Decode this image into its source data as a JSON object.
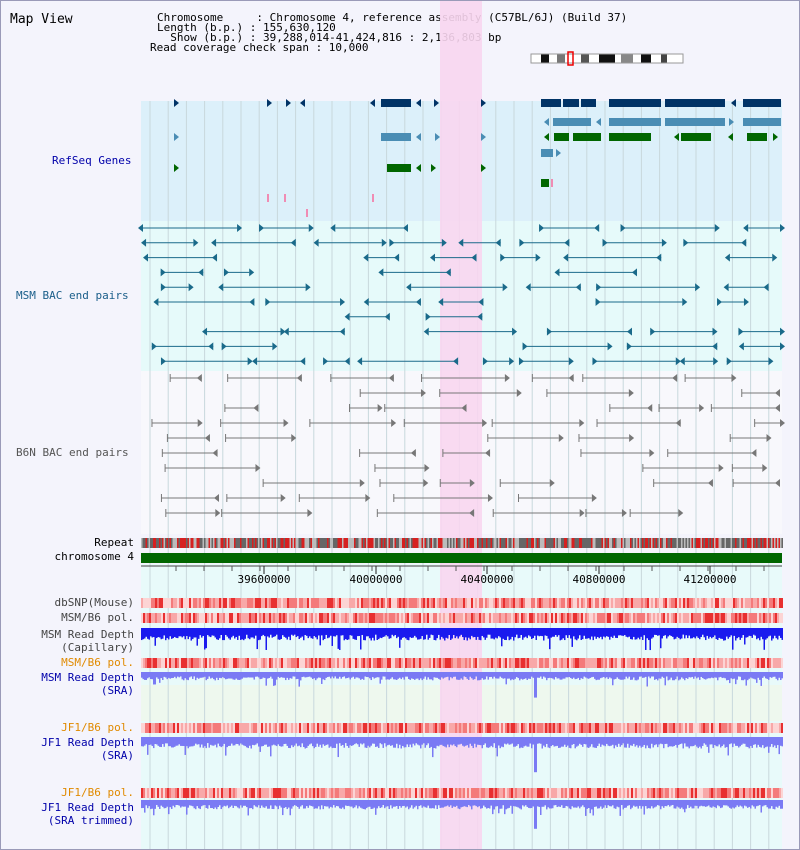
{
  "title": "Map View",
  "info": {
    "chromosome": "Chromosome     : Chromosome 4, reference assembly (C57BL/6J) (Build 37)",
    "length": "Length (b.p.) : 155,630,120",
    "show": "  Show (b.p.) : 39,288,014-41,424,816 : 2,136,803 bp",
    "span": "Read coverage check span : 10,000"
  },
  "tracks": {
    "refseq": "RefSeq Genes",
    "msm_bac": "MSM BAC end pairs",
    "b6n_bac": "B6N BAC end pairs",
    "repeat": "Repeat",
    "chromosome": "chromosome 4",
    "dbsnp": "dbSNP(Mouse)",
    "msm_pol1": "MSM/B6 pol.",
    "msm_depth_cap_1": "MSM Read Depth",
    "msm_depth_cap_2": "(Capillary)",
    "msm_pol2": "MSM/B6 pol.",
    "msm_depth_sra_1": "MSM Read Depth",
    "msm_depth_sra_2": "(SRA)",
    "jf1_pol1": "JF1/B6 pol.",
    "jf1_depth_sra_1": "JF1 Read Depth",
    "jf1_depth_sra_2": "(SRA)",
    "jf1_pol2": "JF1/B6 pol.",
    "jf1_depth_trim_1": "JF1 Read Depth",
    "jf1_depth_trim_2": "(SRA trimmed)"
  },
  "axis": {
    "ticks": [
      "39600000",
      "40000000",
      "40400000",
      "40800000",
      "41200000"
    ]
  },
  "colors": {
    "refseq_bg": "#dcf0fa",
    "bac_bg": "#e6fafa",
    "highlight": "#f8d6f0",
    "navy": "#003366",
    "steel": "#4a8db4",
    "green": "#006600",
    "msm_line": "#1a6a8a",
    "b6n_line": "#777777",
    "repeat_red": "#d62020",
    "depth_blue": "#1a1aee",
    "depth_light": "#7a7af4"
  }
}
